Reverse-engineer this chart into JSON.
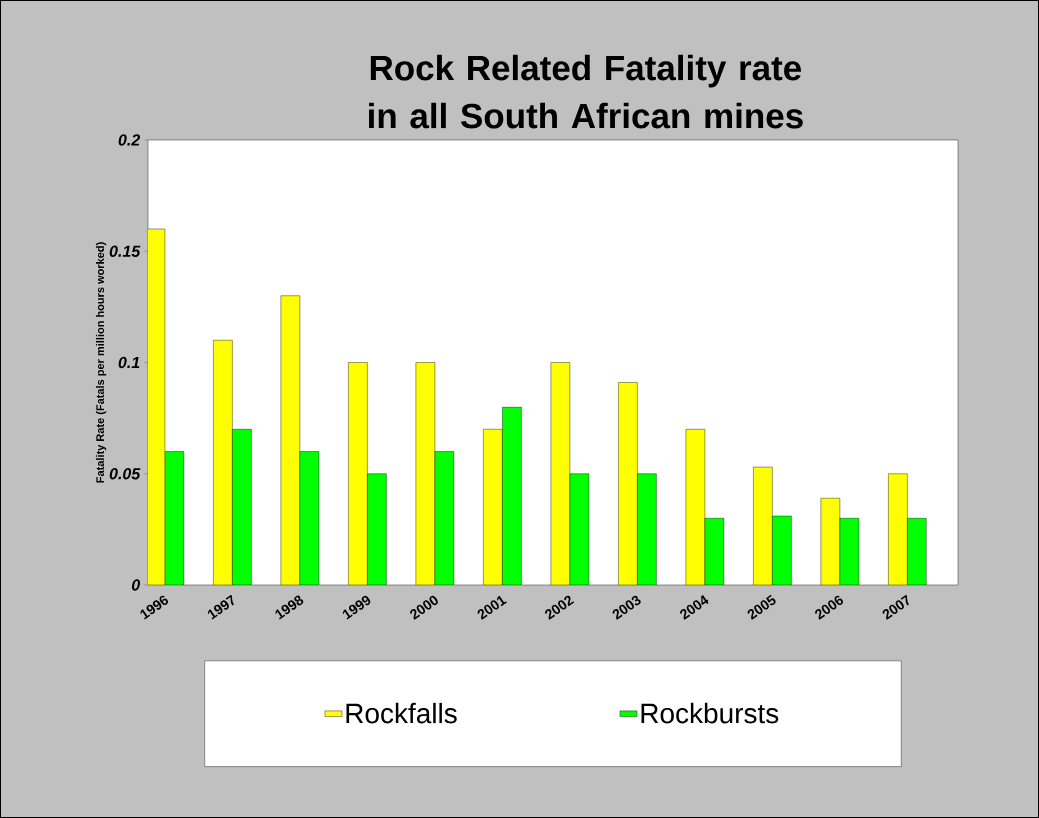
{
  "chart_data": {
    "type": "bar",
    "title": "Rock Related Fatality rate in all South African mines",
    "ylabel": "Fatality Rate (Fatals per million hours worked)",
    "categories": [
      "1996",
      "1997",
      "1998",
      "1999",
      "2000",
      "2001",
      "2002",
      "2003",
      "2004",
      "2005",
      "2006",
      "2007"
    ],
    "series": [
      {
        "name": "Rockfalls",
        "color": "#ffff00",
        "values": [
          0.16,
          0.11,
          0.13,
          0.1,
          0.1,
          0.07,
          0.1,
          0.091,
          0.07,
          0.053,
          0.039,
          0.05
        ]
      },
      {
        "name": "Rockbursts",
        "color": "#00ff00",
        "values": [
          0.06,
          0.07,
          0.06,
          0.05,
          0.06,
          0.08,
          0.05,
          0.05,
          0.03,
          0.031,
          0.03,
          0.03
        ]
      }
    ],
    "ylim": [
      0,
      0.2
    ],
    "yticks": [
      0,
      0.05,
      0.1,
      0.15,
      0.2
    ],
    "legend": "bottom",
    "grid": false
  }
}
